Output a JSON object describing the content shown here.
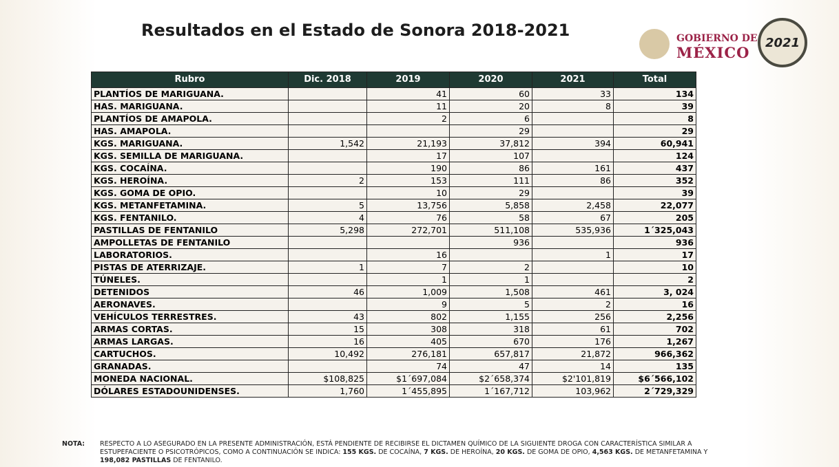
{
  "header": {
    "title": "Resultados en el Estado de Sonora 2018-2021",
    "logo_line1": "GOBIERNO DE",
    "logo_line2": "MÉXICO",
    "badge_year": "2021"
  },
  "table": {
    "columns": [
      "Rubro",
      "Dic. 2018",
      "2019",
      "2020",
      "2021",
      "Total"
    ],
    "rows": [
      [
        "PLANTÍOS DE MARIGUANA.",
        null,
        "41",
        "60",
        "33",
        "134"
      ],
      [
        "HAS. MARIGUANA.",
        null,
        "11",
        "20",
        "8",
        "39"
      ],
      [
        "PLANTÍOS DE AMAPOLA.",
        null,
        "2",
        "6",
        null,
        "8"
      ],
      [
        "HAS. AMAPOLA.",
        null,
        null,
        "29",
        null,
        "29"
      ],
      [
        "KGS. MARIGUANA.",
        "1,542",
        "21,193",
        "37,812",
        "394",
        "60,941"
      ],
      [
        "KGS. SEMILLA DE MARIGUANA.",
        null,
        "17",
        "107",
        null,
        "124"
      ],
      [
        "KGS. COCAÍNA.",
        null,
        "190",
        "86",
        "161",
        "437"
      ],
      [
        "KGS. HEROÍNA.",
        "2",
        "153",
        "111",
        "86",
        "352"
      ],
      [
        "KGS. GOMA DE OPIO.",
        null,
        "10",
        "29",
        null,
        "39"
      ],
      [
        "KGS. METANFETAMINA.",
        "5",
        "13,756",
        "5,858",
        "2,458",
        "22,077"
      ],
      [
        "KGS. FENTANILO.",
        "4",
        "76",
        "58",
        "67",
        "205"
      ],
      [
        "PASTILLAS DE FENTANILO",
        "5,298",
        "272,701",
        "511,108",
        "535,936",
        "1´325,043"
      ],
      [
        "AMPOLLETAS DE FENTANILO",
        null,
        null,
        "936",
        null,
        "936"
      ],
      [
        "LABORATORIOS.",
        null,
        "16",
        null,
        "1",
        "17"
      ],
      [
        "PISTAS DE ATERRIZAJE.",
        "1",
        "7",
        "2",
        null,
        "10"
      ],
      [
        "TÚNELES.",
        null,
        "1",
        "1",
        null,
        "2"
      ],
      [
        "DETENIDOS",
        "46",
        "1,009",
        "1,508",
        "461",
        "3, 024"
      ],
      [
        "AERONAVES.",
        null,
        "9",
        "5",
        "2",
        "16"
      ],
      [
        "VEHÍCULOS TERRESTRES.",
        "43",
        "802",
        "1,155",
        "256",
        "2,256"
      ],
      [
        "ARMAS CORTAS.",
        "15",
        "308",
        "318",
        "61",
        "702"
      ],
      [
        "ARMAS LARGAS.",
        "16",
        "405",
        "670",
        "176",
        "1,267"
      ],
      [
        "CARTUCHOS.",
        "10,492",
        "276,181",
        "657,817",
        "21,872",
        "966,362"
      ],
      [
        "GRANADAS.",
        null,
        "74",
        "47",
        "14",
        "135"
      ],
      [
        "MONEDA NACIONAL.",
        "$108,825",
        "$1´697,084",
        "$2´658,374",
        "$2'101,819",
        "$6´566,102"
      ],
      [
        "DÓLARES ESTADOUNIDENSES.",
        "1,760",
        "1´455,895",
        "1´167,712",
        "103,962",
        "2´729,329"
      ]
    ]
  },
  "note": {
    "label": "NOTA:",
    "parts": [
      {
        "text": "RESPECTO A LO ASEGURADO EN LA PRESENTE ADMINISTRACIÓN, ESTÁ PENDIENTE DE RECIBIRSE EL DICTAMEN QUÍMICO DE LA SIGUIENTE DROGA CON CARACTERÍSTICA SIMILAR A ESTUPEFACIENTE O PSICOTRÓPICOS, COMO A CONTINUACIÓN SE INDICA: ",
        "bold": false
      },
      {
        "text": "155 KGS.",
        "bold": true
      },
      {
        "text": " DE COCAÍNA, ",
        "bold": false
      },
      {
        "text": "7 KGS.",
        "bold": true
      },
      {
        "text": " DE HEROÍNA, ",
        "bold": false
      },
      {
        "text": "20 KGS.",
        "bold": true
      },
      {
        "text": " DE GOMA DE OPIO, ",
        "bold": false
      },
      {
        "text": "4,563 KGS.",
        "bold": true
      },
      {
        "text": " DE METANFETAMINA Y ",
        "bold": false
      },
      {
        "text": "198,082 PASTILLAS",
        "bold": true
      },
      {
        "text": " DE FENTANILO.",
        "bold": false
      }
    ]
  }
}
